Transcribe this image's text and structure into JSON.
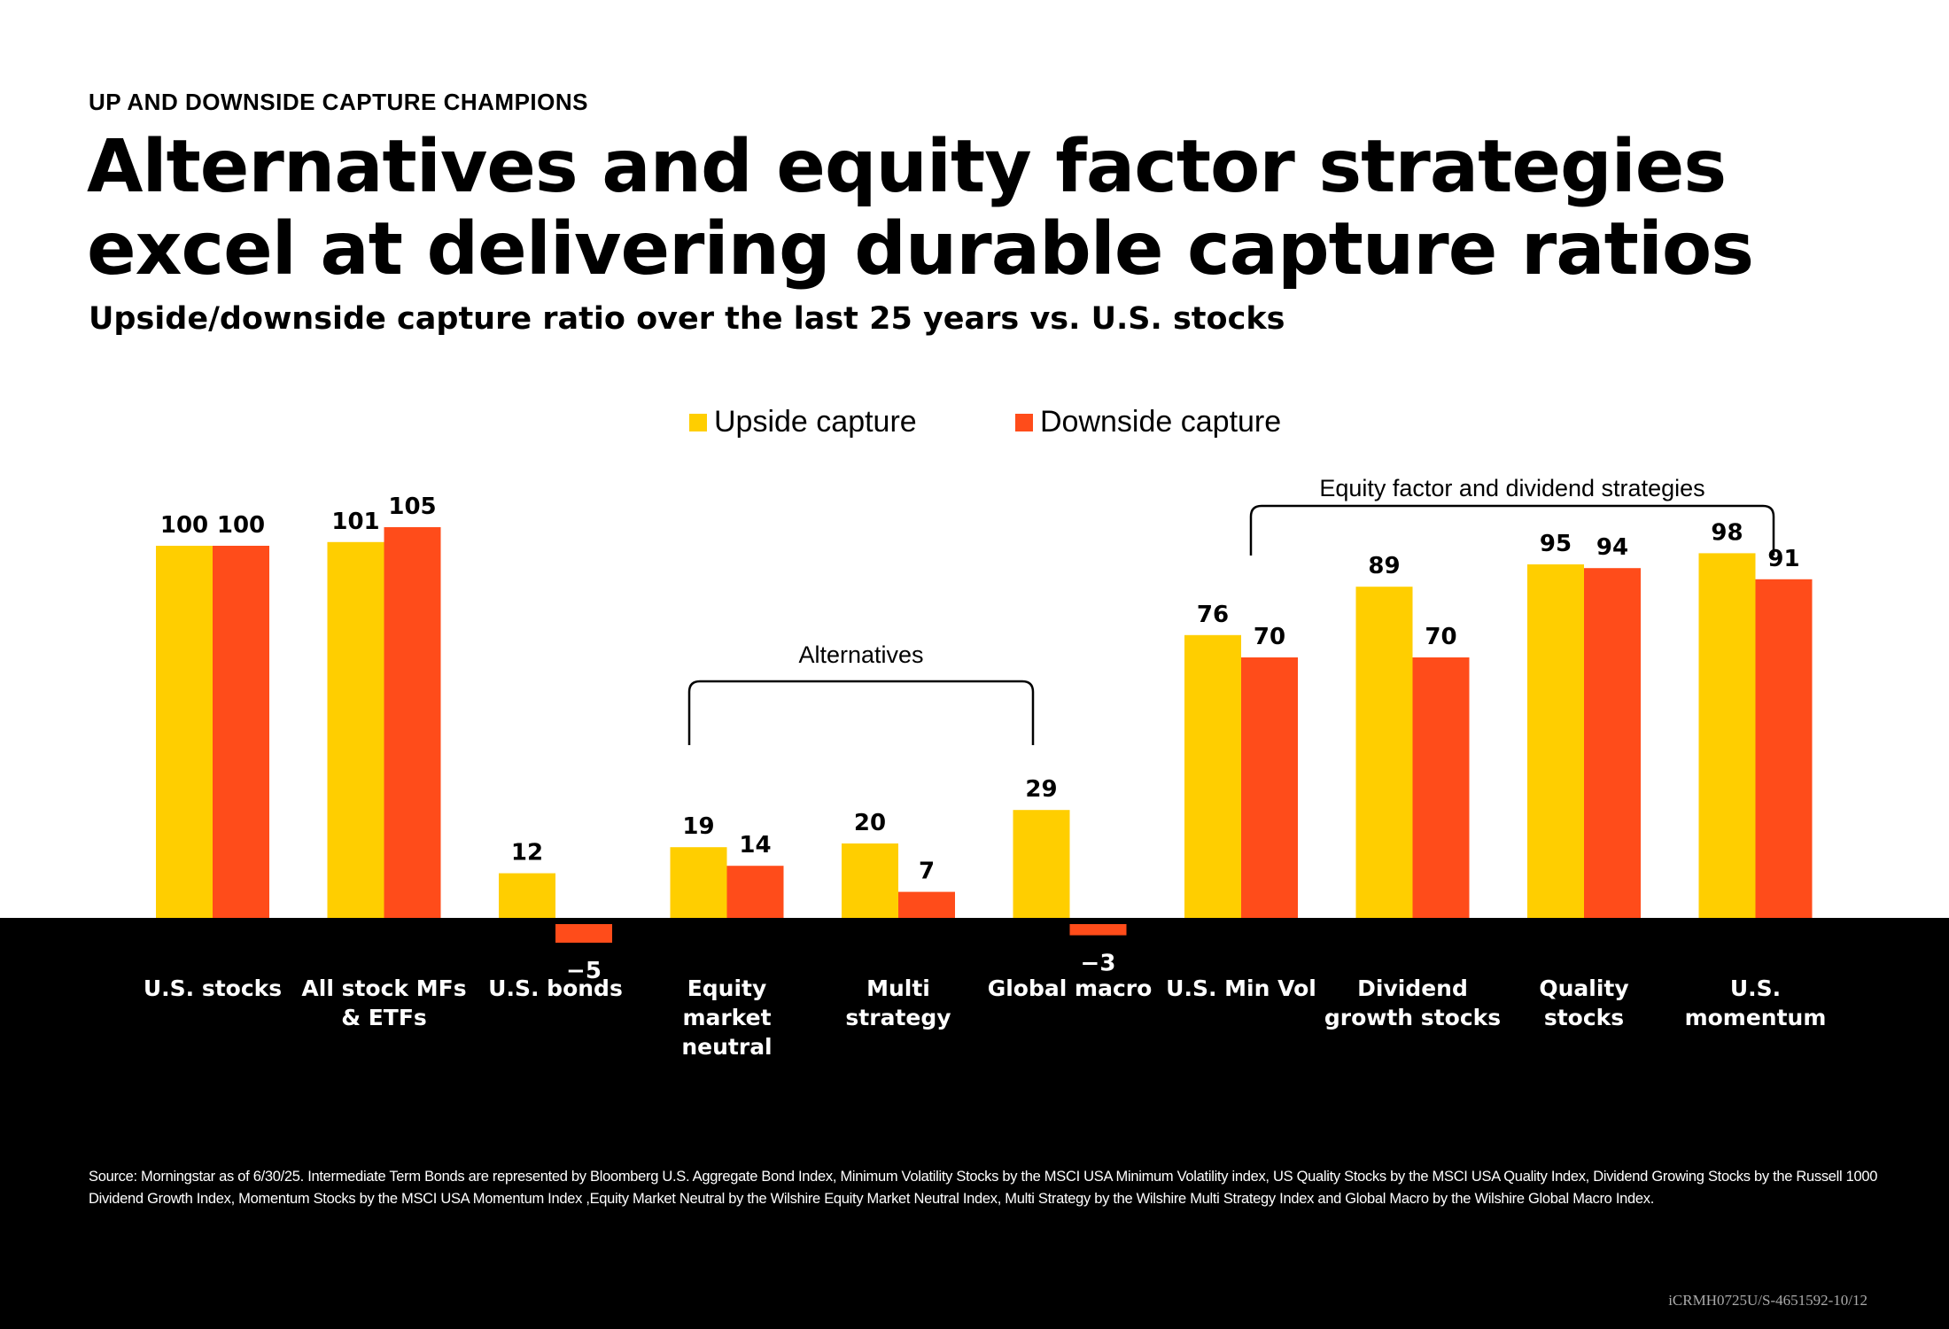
{
  "header": {
    "kicker": "UP AND DOWNSIDE CAPTURE CHAMPIONS",
    "title": "Alternatives and equity factor strategies excel at delivering durable capture ratios",
    "subtitle": "Upside/downside capture ratio over the last 25 years vs. U.S. stocks"
  },
  "colors": {
    "upside": "#FFCE00",
    "downside": "#FF4C1A",
    "footer_bg": "#000000"
  },
  "chart_data": {
    "type": "bar",
    "categories": [
      "U.S. stocks",
      "All stock MFs & ETFs",
      "U.S. bonds",
      "Equity market neutral",
      "Multi strategy",
      "Global macro",
      "U.S. Min Vol",
      "Dividend growth stocks",
      "Quality stocks",
      "U.S. momentum"
    ],
    "category_lines": [
      [
        "U.S. stocks"
      ],
      [
        "All stock MFs",
        "& ETFs"
      ],
      [
        "U.S. bonds"
      ],
      [
        "Equity",
        "market",
        "neutral"
      ],
      [
        "Multi",
        "strategy"
      ],
      [
        "Global macro"
      ],
      [
        "U.S. Min Vol"
      ],
      [
        "Dividend",
        "growth stocks"
      ],
      [
        "Quality",
        "stocks"
      ],
      [
        "U.S.",
        "momentum"
      ]
    ],
    "series": [
      {
        "name": "Upside capture",
        "values": [
          100,
          101,
          12,
          19,
          20,
          29,
          76,
          89,
          95,
          98
        ]
      },
      {
        "name": "Downside capture",
        "values": [
          100,
          105,
          -5,
          14,
          7,
          -3,
          70,
          70,
          94,
          91
        ]
      }
    ],
    "groups": [
      {
        "label": "Alternatives",
        "from": 3,
        "to": 5
      },
      {
        "label": "Equity factor and dividend strategies",
        "from": 6,
        "to": 9
      }
    ],
    "legend_position": "top-center",
    "grid": false
  },
  "footer": {
    "source": "Source: Morningstar as of 6/30/25. Intermediate Term Bonds are represented by Bloomberg U.S. Aggregate Bond Index, Minimum Volatility Stocks by the MSCI USA Minimum Volatility index, US Quality Stocks by the MSCI USA Quality Index, Dividend Growing Stocks by the Russell 1000 Dividend Growth Index, Momentum Stocks by the MSCI USA Momentum Index ,Equity Market Neutral by the Wilshire Equity Market Neutral Index, Multi Strategy by the Wilshire Multi Strategy Index and Global Macro by the Wilshire Global Macro Index.",
    "code": "iCRMH0725U/S-4651592-10/12"
  }
}
